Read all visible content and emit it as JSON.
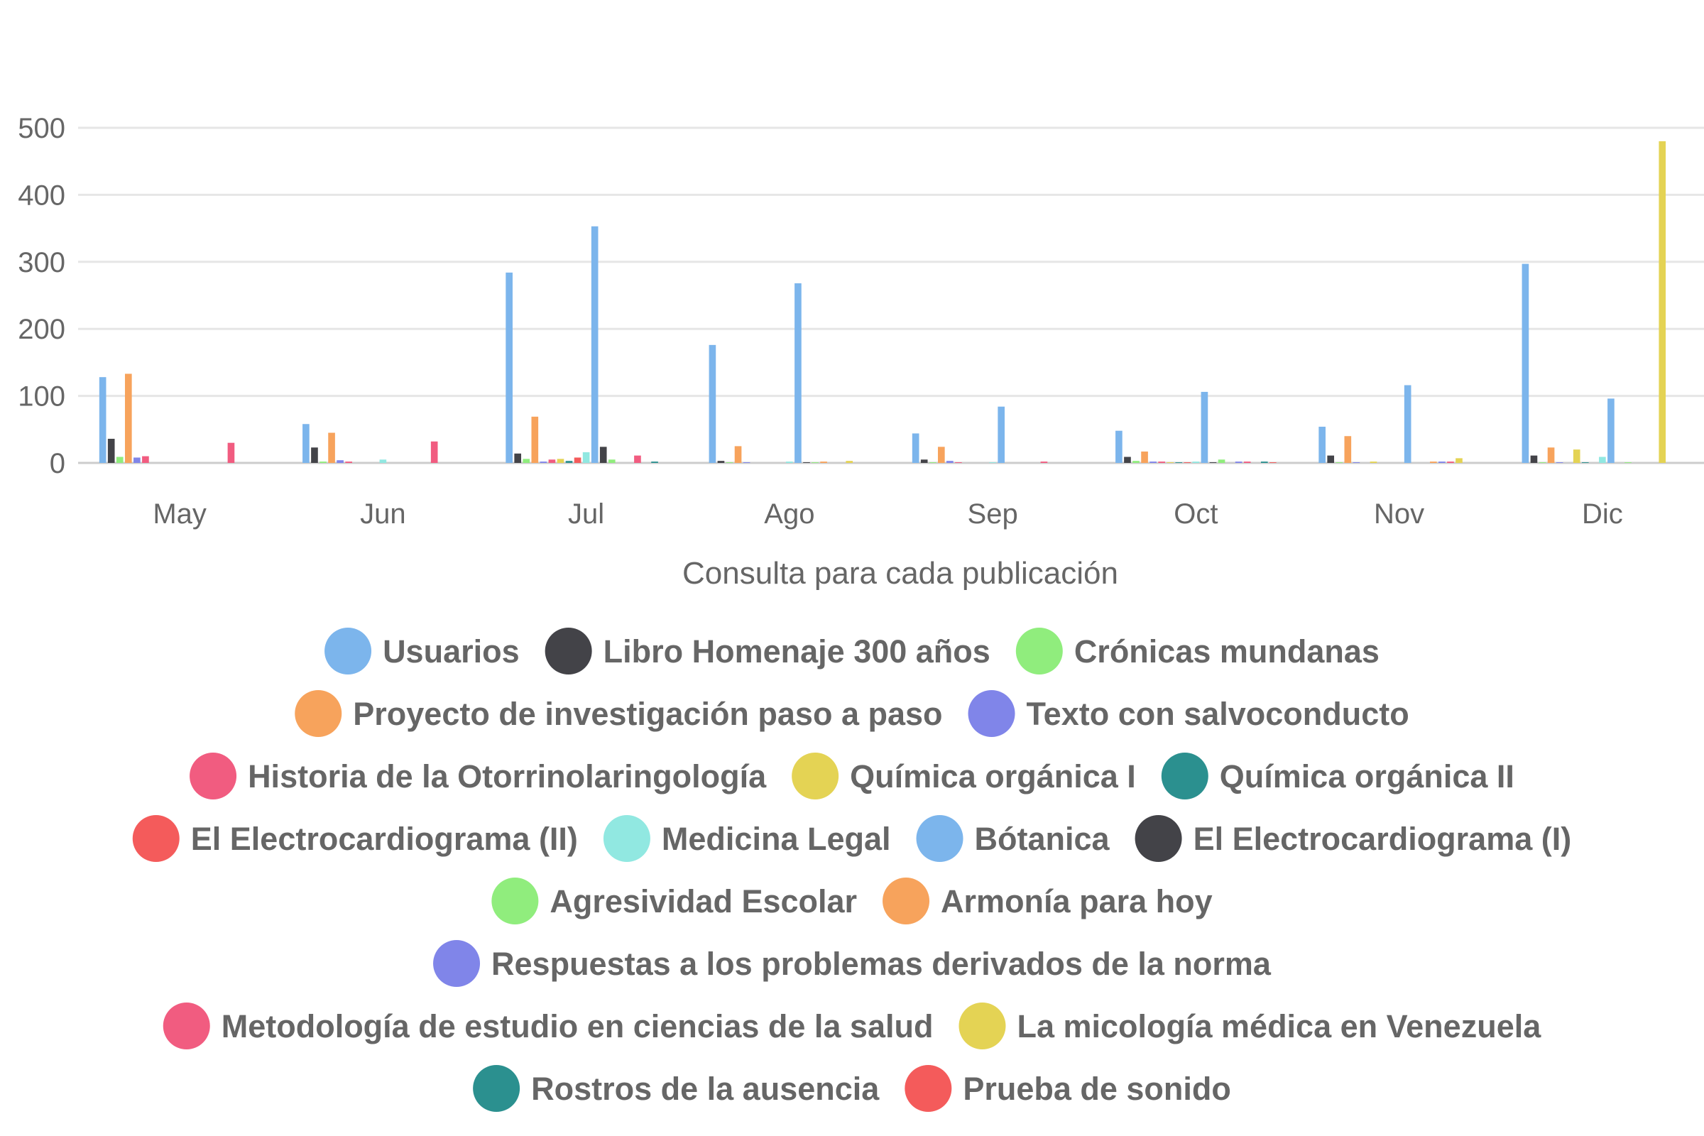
{
  "chart_data": {
    "type": "bar",
    "title": "",
    "xlabel": "Consulta para cada publicación",
    "ylabel": "",
    "ylim": [
      0,
      500
    ],
    "yticks": [
      0,
      100,
      200,
      300,
      400,
      500
    ],
    "grid": true,
    "legend_position": "bottom",
    "categories": [
      "May",
      "Jun",
      "Jul",
      "Ago",
      "Sep",
      "Oct",
      "Nov",
      "Dic"
    ],
    "series": [
      {
        "name": "Usuarios",
        "color": "#7cb5ec",
        "values": [
          128,
          58,
          284,
          176,
          44,
          48,
          54,
          297
        ]
      },
      {
        "name": "Libro Homenaje 300 años",
        "color": "#434348",
        "values": [
          36,
          23,
          14,
          3,
          5,
          9,
          11,
          11
        ]
      },
      {
        "name": "Crónicas mundanas",
        "color": "#90ed7d",
        "values": [
          9,
          2,
          6,
          1,
          1,
          3,
          1,
          1
        ]
      },
      {
        "name": "Proyecto de investigación paso a paso",
        "color": "#f7a35c",
        "values": [
          133,
          45,
          69,
          25,
          24,
          17,
          40,
          23
        ]
      },
      {
        "name": "Texto con salvoconducto",
        "color": "#8085e9",
        "values": [
          8,
          4,
          2,
          1,
          3,
          2,
          1,
          1
        ]
      },
      {
        "name": "Historia de la Otorrinolaringología",
        "color": "#f15c80",
        "values": [
          10,
          2,
          5,
          0,
          1,
          2,
          0,
          0
        ]
      },
      {
        "name": "Química orgánica I",
        "color": "#e4d354",
        "values": [
          0,
          0,
          6,
          0,
          0,
          1,
          2,
          20
        ]
      },
      {
        "name": "Química orgánica II",
        "color": "#2b908f",
        "values": [
          0,
          0,
          3,
          0,
          0,
          1,
          0,
          1
        ]
      },
      {
        "name": "El Electrocardiograma (II)",
        "color": "#f45b5b",
        "values": [
          0,
          0,
          8,
          0,
          0,
          1,
          0,
          0
        ]
      },
      {
        "name": "Medicina Legal",
        "color": "#91e8e1",
        "values": [
          0,
          5,
          16,
          2,
          1,
          2,
          0,
          9
        ]
      },
      {
        "name": "Bótanica",
        "color": "#7cb5ec",
        "values": [
          0,
          0,
          353,
          268,
          84,
          106,
          116,
          96
        ]
      },
      {
        "name": "El Electrocardiograma (I)",
        "color": "#434348",
        "values": [
          0,
          0,
          24,
          1,
          0,
          1,
          0,
          0
        ]
      },
      {
        "name": "Agresividad Escolar",
        "color": "#90ed7d",
        "values": [
          0,
          0,
          5,
          1,
          0,
          5,
          0,
          1
        ]
      },
      {
        "name": "Armonía para hoy",
        "color": "#f7a35c",
        "values": [
          0,
          0,
          0,
          2,
          0,
          0,
          2,
          0
        ]
      },
      {
        "name": "Respuestas a los problemas derivados de la norma",
        "color": "#8085e9",
        "values": [
          0,
          0,
          0,
          0,
          0,
          2,
          2,
          0
        ]
      },
      {
        "name": "Metodología de estudio en ciencias de la salud",
        "color": "#f15c80",
        "values": [
          30,
          32,
          11,
          0,
          2,
          2,
          2,
          0
        ]
      },
      {
        "name": "La micología médica en Venezuela",
        "color": "#e4d354",
        "values": [
          0,
          0,
          0,
          3,
          0,
          0,
          7,
          480
        ]
      },
      {
        "name": "Rostros de la ausencia",
        "color": "#2b908f",
        "values": [
          0,
          0,
          2,
          0,
          0,
          2,
          0,
          0
        ]
      },
      {
        "name": "Prueba de sonido",
        "color": "#f45b5b",
        "values": [
          0,
          0,
          0,
          0,
          0,
          1,
          0,
          0
        ]
      }
    ]
  }
}
